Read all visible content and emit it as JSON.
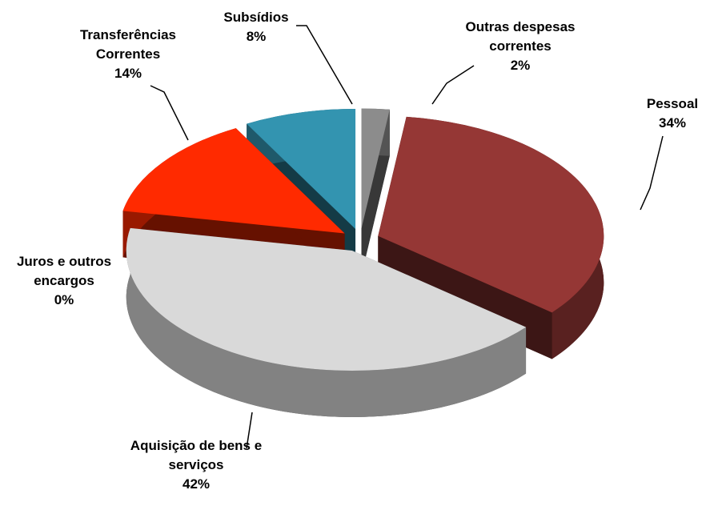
{
  "chart_data": {
    "type": "pie",
    "categories": [
      "Outras despesas correntes",
      "Pessoal",
      "Aquisição de bens e serviços",
      "Juros e outros encargos",
      "Transferências Correntes",
      "Subsídios"
    ],
    "values": [
      2,
      34,
      42,
      0,
      14,
      8
    ],
    "value_labels": [
      "2%",
      "34%",
      "42%",
      "0%",
      "14%",
      "8%"
    ],
    "colors": [
      "#8c8c8c",
      "#953735",
      "#d9d9d9",
      "#3a0a05",
      "#ff2a00",
      "#3394b0"
    ]
  }
}
